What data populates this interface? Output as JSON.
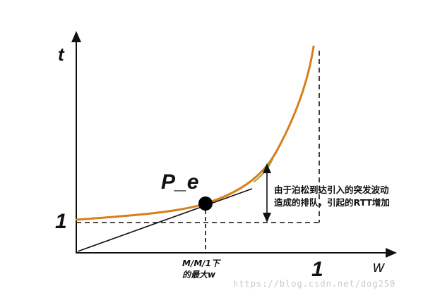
{
  "axes": {
    "y_label": "t",
    "x_label": "w",
    "y_tick": "1",
    "x_tick": "1"
  },
  "point_label": "P_e",
  "annotation": {
    "line1": "由于泊松到达引入的突发波动",
    "line2": "造成的排队，引起的RTT增加"
  },
  "x_mark": {
    "line1": "M/M/1下",
    "line2": "的最大w"
  },
  "watermark": "https://blog.csdn.net/dog250",
  "colors": {
    "curve": "#d6801a",
    "curve_highlight": "#9aa43a",
    "ink": "#111111"
  }
}
